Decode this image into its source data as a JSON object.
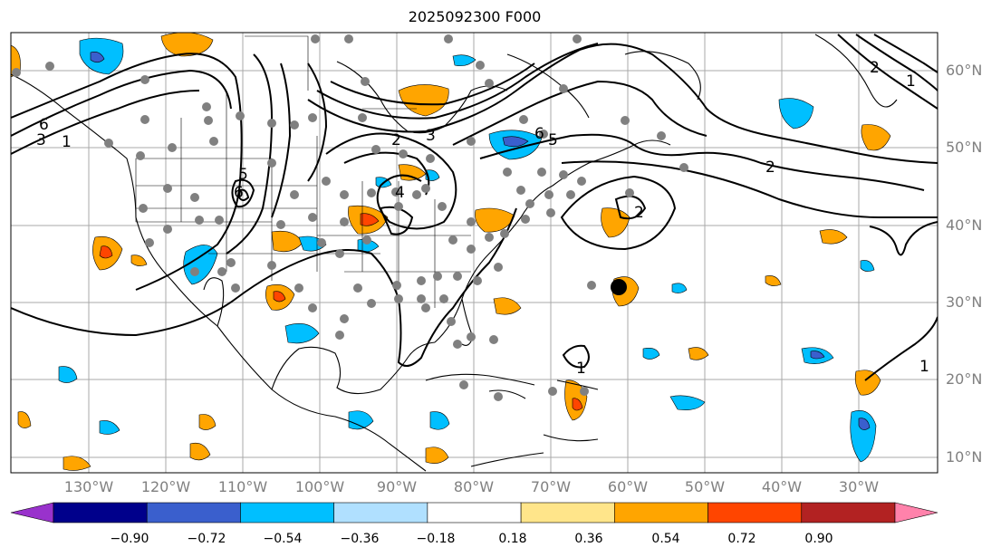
{
  "title": "2025092300 F000",
  "latitude_labels": [
    "60°N",
    "50°N",
    "40°N",
    "30°N",
    "20°N",
    "10°N"
  ],
  "longitude_labels": [
    "130°W",
    "120°W",
    "110°W",
    "100°W",
    "90°W",
    "80°W",
    "70°W",
    "60°W",
    "50°W",
    "40°W",
    "30°W"
  ],
  "contour_labels": [
    "6",
    "1",
    "5",
    "6",
    "3",
    "2",
    "3",
    "4",
    "6",
    "5",
    "2",
    "2",
    "1",
    "1",
    "2",
    "1"
  ],
  "colorbar": {
    "tick_labels": [
      "−0.90",
      "−0.72",
      "−0.54",
      "−0.36",
      "−0.18",
      "0.18",
      "0.36",
      "0.54",
      "0.72",
      "0.90"
    ],
    "colors": [
      "#9932cc",
      "#00008b",
      "#3a5fcd",
      "#00bfff",
      "#b0e0ff",
      "#ffffff",
      "#ffe58a",
      "#ffa500",
      "#ff4500",
      "#b22222",
      "#ff82ab"
    ]
  }
}
